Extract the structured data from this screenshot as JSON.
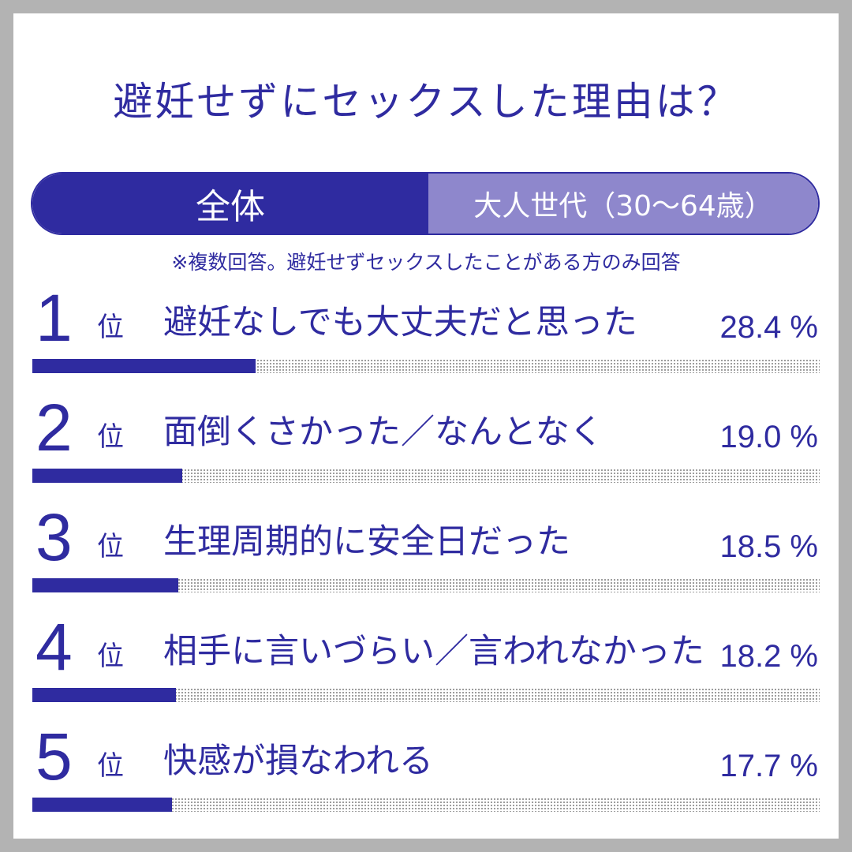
{
  "title": "避妊せずにセックスした理由は？",
  "tabs": {
    "all": "全体",
    "adult": "大人世代（30～64歳）"
  },
  "note": "※複数回答。避妊せずセックスしたことがある方のみ回答",
  "rank_unit": "位",
  "percent_suffix": " %",
  "colors": {
    "accent": "#2f2ba0",
    "tab_inactive": "#8e87cc",
    "frame": "#b3b3b3"
  },
  "chart_data": {
    "type": "bar",
    "title": "避妊せずにセックスした理由は？",
    "categories": [
      "避妊なしでも大丈夫だと思った",
      "面倒くさかった／なんとなく",
      "生理周期的に安全日だった",
      "相手に言いづらい／言われなかった",
      "快感が損なわれる"
    ],
    "ranks": [
      "1",
      "2",
      "3",
      "4",
      "5"
    ],
    "values": [
      28.4,
      19.0,
      18.5,
      18.2,
      17.7
    ],
    "value_labels": [
      "28.4",
      "19.0",
      "18.5",
      "18.2",
      "17.7"
    ],
    "unit": "%",
    "xlim": [
      0,
      100
    ],
    "orientation": "horizontal"
  }
}
